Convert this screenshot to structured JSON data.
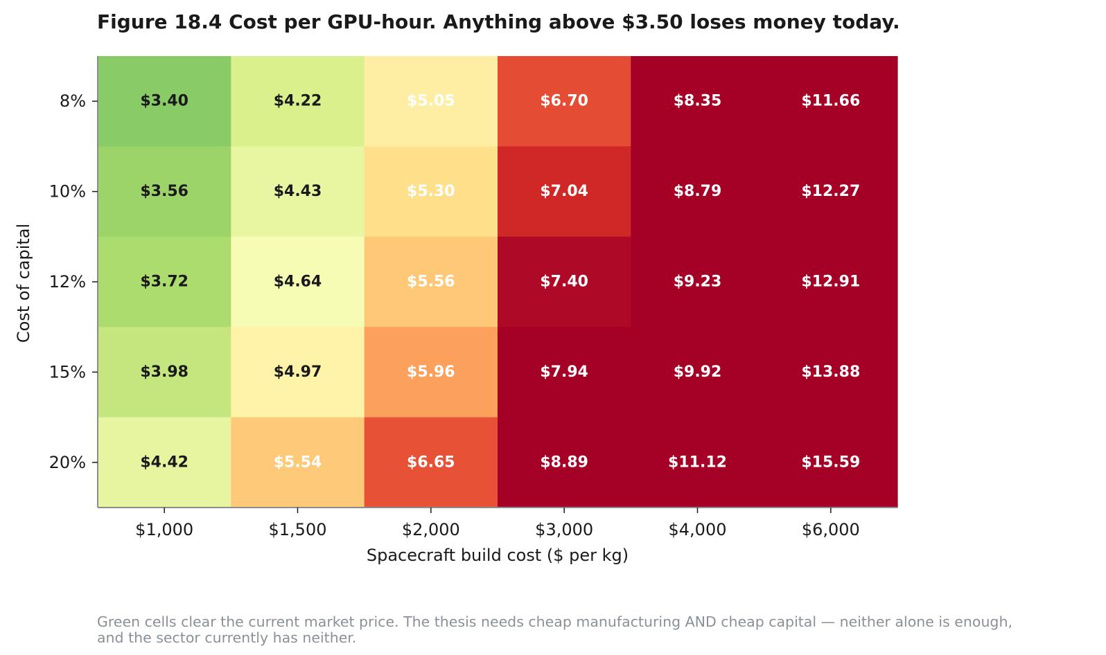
{
  "title": "Figure 18.4  Cost per GPU-hour. Anything above $3.50 loses money today.",
  "footnote": {
    "line1": "Green cells clear the current market price. The thesis needs cheap manufacturing AND cheap capital — neither alone is enough,",
    "line2": "and the sector currently has neither."
  },
  "chart_data": {
    "type": "heatmap",
    "title": "Figure 18.4  Cost per GPU-hour. Anything above $3.50 loses money today.",
    "xlabel": "Spacecraft build cost ($ per kg)",
    "ylabel": "Cost of capital",
    "x_categories": [
      "$1,000",
      "$1,500",
      "$2,000",
      "$3,000",
      "$4,000",
      "$6,000"
    ],
    "y_categories": [
      "8%",
      "10%",
      "12%",
      "15%",
      "20%"
    ],
    "values": [
      [
        3.4,
        4.22,
        5.05,
        6.7,
        8.35,
        11.66
      ],
      [
        3.56,
        4.43,
        5.3,
        7.04,
        8.79,
        12.27
      ],
      [
        3.72,
        4.64,
        5.56,
        7.4,
        9.23,
        12.91
      ],
      [
        3.98,
        4.97,
        5.96,
        7.94,
        9.92,
        13.88
      ],
      [
        4.42,
        5.54,
        6.65,
        8.89,
        11.12,
        15.59
      ]
    ],
    "labels": [
      [
        "$3.40",
        "$4.22",
        "$5.05",
        "$6.70",
        "$8.35",
        "$11.66"
      ],
      [
        "$3.56",
        "$4.43",
        "$5.30",
        "$7.04",
        "$8.79",
        "$12.27"
      ],
      [
        "$3.72",
        "$4.64",
        "$5.56",
        "$7.40",
        "$9.23",
        "$12.91"
      ],
      [
        "$3.98",
        "$4.97",
        "$5.96",
        "$7.94",
        "$9.92",
        "$13.88"
      ],
      [
        "$4.42",
        "$5.54",
        "$6.65",
        "$8.89",
        "$11.12",
        "$15.59"
      ]
    ],
    "colormap": "RdYlGn_r",
    "color_range": [
      2.0,
      7.5
    ],
    "label_colors": {
      "dark": "#1a1a1a",
      "light": "#ffffff"
    },
    "grid": false
  }
}
